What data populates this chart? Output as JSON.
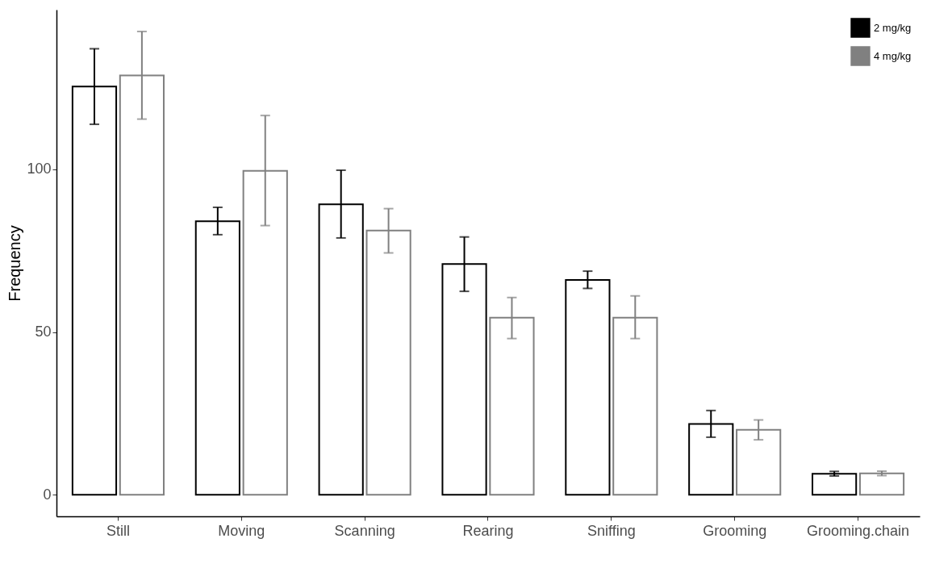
{
  "chart_data": {
    "type": "bar",
    "ylabel": "Frequency",
    "categories": [
      "Still",
      "Moving",
      "Scanning",
      "Rearing",
      "Sniffing",
      "Grooming",
      "Grooming.chain"
    ],
    "series": [
      {
        "name": "2 mg/kg",
        "color": "#000000",
        "values": [
          125.4,
          84.0,
          89.2,
          70.9,
          66.0,
          21.8,
          6.5
        ],
        "errors": [
          [
            113.8,
            137.0
          ],
          [
            79.9,
            88.3
          ],
          [
            78.9,
            99.7
          ],
          [
            62.5,
            79.2
          ],
          [
            63.4,
            68.7
          ],
          [
            17.7,
            25.9
          ],
          [
            5.8,
            7.2
          ]
        ]
      },
      {
        "name": "4 mg/kg",
        "color": "#808080",
        "values": [
          128.8,
          99.5,
          81.2,
          54.4,
          54.4,
          20.0,
          6.6
        ],
        "errors": [
          [
            115.4,
            142.3
          ],
          [
            82.7,
            116.5
          ],
          [
            74.3,
            87.9
          ],
          [
            48.0,
            60.6
          ],
          [
            48.0,
            61.1
          ],
          [
            16.9,
            23.0
          ],
          [
            5.9,
            7.3
          ]
        ]
      }
    ],
    "ylim": [
      -6.6,
      149
    ],
    "yticks": [
      0,
      50,
      100
    ],
    "grid": false,
    "legend": "top right"
  }
}
